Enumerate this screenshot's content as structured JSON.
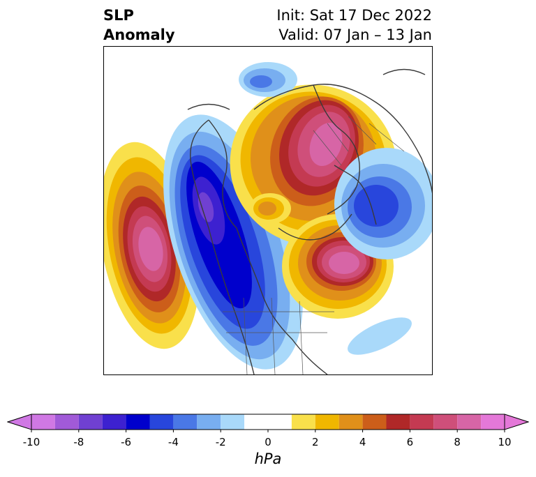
{
  "title": {
    "left_line1": "SLP",
    "left_line2": "Anomaly",
    "right_line1": "Init: Sat 17 Dec 2022",
    "right_line2": "Valid: 07 Jan – 13 Jan"
  },
  "colorbar": {
    "unit": "hPa",
    "ticks": [
      "-10",
      "-8",
      "-6",
      "-4",
      "-2",
      "0",
      "2",
      "4",
      "6",
      "8",
      "10"
    ],
    "bins": [
      {
        "from": -10,
        "to": -9,
        "color": "#d078e4"
      },
      {
        "from": -9,
        "to": -8,
        "color": "#a15ad8"
      },
      {
        "from": -8,
        "to": -7,
        "color": "#7040d2"
      },
      {
        "from": -7,
        "to": -6,
        "color": "#3d21d0"
      },
      {
        "from": -6,
        "to": -5,
        "color": "#0000cc"
      },
      {
        "from": -5,
        "to": -4,
        "color": "#2846dc"
      },
      {
        "from": -4,
        "to": -3,
        "color": "#4a78e6"
      },
      {
        "from": -3,
        "to": -2,
        "color": "#78aef0"
      },
      {
        "from": -2,
        "to": -1,
        "color": "#a9d9fa"
      },
      {
        "from": -1,
        "to": 1,
        "color": "#ffffff"
      },
      {
        "from": 1,
        "to": 2,
        "color": "#f9e04b"
      },
      {
        "from": 2,
        "to": 3,
        "color": "#f0b700"
      },
      {
        "from": 3,
        "to": 4,
        "color": "#e0901a"
      },
      {
        "from": 4,
        "to": 5,
        "color": "#cc5e1a"
      },
      {
        "from": 5,
        "to": 6,
        "color": "#b02828"
      },
      {
        "from": 6,
        "to": 7,
        "color": "#c43a52"
      },
      {
        "from": 7,
        "to": 8,
        "color": "#cf4f7a"
      },
      {
        "from": 8,
        "to": 9,
        "color": "#d765a6"
      },
      {
        "from": 9,
        "to": 10,
        "color": "#e478d8"
      }
    ],
    "under_color": "#d078e4",
    "over_color": "#e478d8"
  }
}
